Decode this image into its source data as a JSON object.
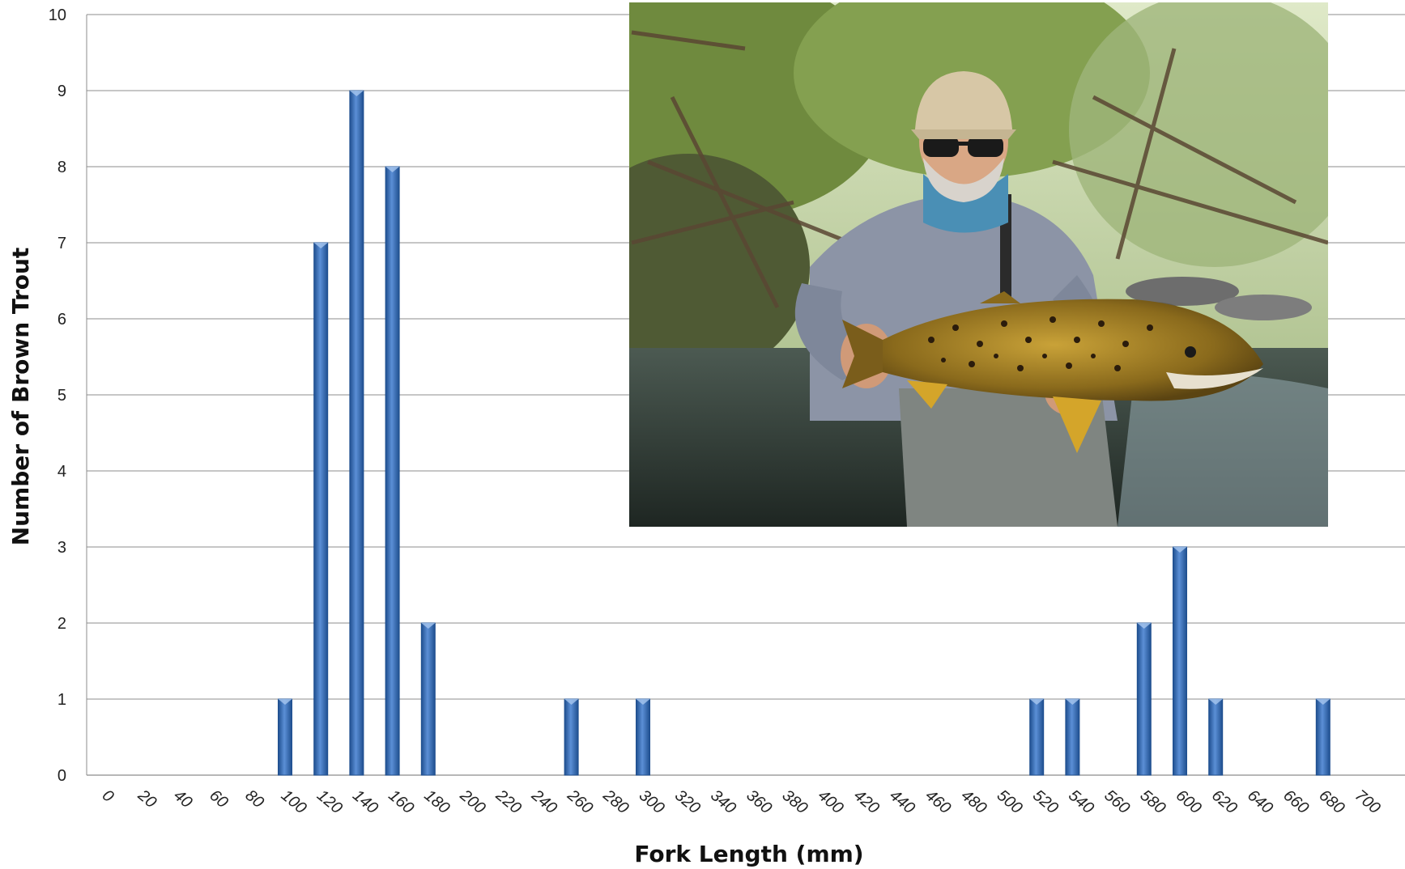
{
  "chart_data": {
    "type": "bar",
    "xlabel": "Fork Length (mm)",
    "ylabel": "Number of Brown Trout",
    "categories": [
      "0",
      "20",
      "40",
      "60",
      "80",
      "100",
      "120",
      "140",
      "160",
      "180",
      "200",
      "220",
      "240",
      "260",
      "280",
      "300",
      "320",
      "340",
      "360",
      "380",
      "400",
      "420",
      "440",
      "460",
      "480",
      "500",
      "520",
      "540",
      "560",
      "580",
      "600",
      "620",
      "640",
      "660",
      "680",
      "700"
    ],
    "values": [
      0,
      0,
      0,
      0,
      0,
      1,
      7,
      9,
      8,
      2,
      0,
      0,
      0,
      1,
      0,
      1,
      0,
      0,
      0,
      0,
      0,
      0,
      0,
      0,
      0,
      0,
      1,
      1,
      0,
      2,
      3,
      1,
      0,
      0,
      1,
      0
    ],
    "ylim": [
      0,
      10
    ],
    "yticks": [
      0,
      1,
      2,
      3,
      4,
      5,
      6,
      7,
      8,
      9,
      10
    ],
    "grid": true,
    "bar_color": "#3a6fb5"
  },
  "inset_photo": {
    "icon": "angler-holding-brown-trout-photo"
  }
}
